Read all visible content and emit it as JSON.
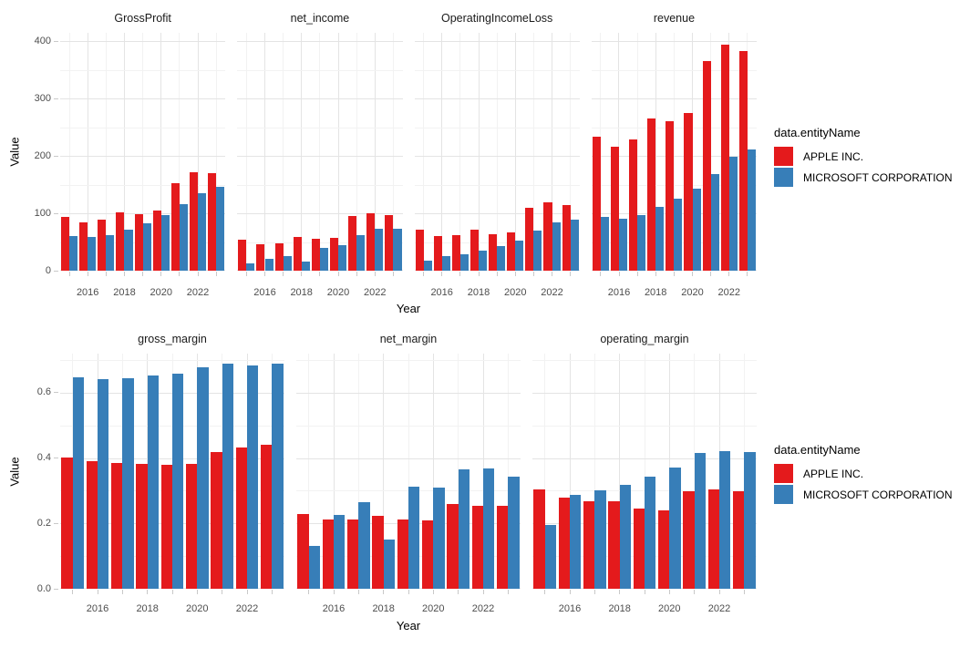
{
  "figure": {
    "axis_title_x": "Year",
    "axis_title_y": "Value",
    "background": "#ffffff"
  },
  "legend": {
    "title": "data.entityName",
    "entries": [
      {
        "label": "APPLE INC.",
        "color": "#e41a1c"
      },
      {
        "label": "MICROSOFT CORPORATION",
        "color": "#377eb8"
      }
    ]
  },
  "chart_data": [
    {
      "type": "bar",
      "row": "top",
      "xlabel": "Year",
      "ylabel": "Value",
      "x": [
        2015,
        2016,
        2017,
        2018,
        2019,
        2020,
        2021,
        2022,
        2023
      ],
      "xticks": [
        2016,
        2018,
        2020,
        2022
      ],
      "yticks": [
        0,
        100,
        200,
        300,
        400
      ],
      "ytick_labels": [
        "0",
        "100",
        "200",
        "300",
        "400"
      ],
      "ylim": [
        0,
        400
      ],
      "grid": true,
      "legend_position": "right",
      "facets": [
        {
          "title": "GrossProfit",
          "series": [
            {
              "name": "APPLE INC.",
              "color": "#e41a1c",
              "values": [
                93.6,
                84.3,
                88.2,
                101.8,
                98.4,
                104.9,
                152.8,
                170.8,
                169.1
              ]
            },
            {
              "name": "MICROSOFT CORPORATION",
              "color": "#377eb8",
              "values": [
                60.5,
                58.4,
                62.3,
                72.0,
                82.9,
                96.9,
                115.9,
                135.6,
                146.1
              ]
            }
          ]
        },
        {
          "title": "net_income",
          "series": [
            {
              "name": "APPLE INC.",
              "color": "#e41a1c",
              "values": [
                53.4,
                45.7,
                48.4,
                59.5,
                55.3,
                57.4,
                94.7,
                99.8,
                97.0
              ]
            },
            {
              "name": "MICROSOFT CORPORATION",
              "color": "#377eb8",
              "values": [
                12.2,
                20.5,
                25.5,
                16.6,
                39.2,
                44.3,
                61.3,
                72.7,
                72.4
              ]
            }
          ]
        },
        {
          "title": "OperatingIncomeLoss",
          "series": [
            {
              "name": "APPLE INC.",
              "color": "#e41a1c",
              "values": [
                71.2,
                60.0,
                61.3,
                70.9,
                63.9,
                66.3,
                108.9,
                119.4,
                114.3
              ]
            },
            {
              "name": "MICROSOFT CORPORATION",
              "color": "#377eb8",
              "values": [
                18.2,
                26.1,
                29.0,
                35.1,
                43.0,
                53.0,
                69.9,
                83.4,
                88.5
              ]
            }
          ]
        },
        {
          "title": "revenue",
          "series": [
            {
              "name": "APPLE INC.",
              "color": "#e41a1c",
              "values": [
                233.7,
                215.6,
                229.2,
                265.6,
                260.2,
                274.5,
                365.8,
                394.3,
                383.3
              ]
            },
            {
              "name": "MICROSOFT CORPORATION",
              "color": "#377eb8",
              "values": [
                93.6,
                91.2,
                96.6,
                110.4,
                125.8,
                143.0,
                168.1,
                198.3,
                211.9
              ]
            }
          ]
        }
      ]
    },
    {
      "type": "bar",
      "row": "bottom",
      "xlabel": "Year",
      "ylabel": "Value",
      "x": [
        2015,
        2016,
        2017,
        2018,
        2019,
        2020,
        2021,
        2022,
        2023
      ],
      "xticks": [
        2016,
        2018,
        2020,
        2022
      ],
      "yticks": [
        0,
        0.2,
        0.4,
        0.6
      ],
      "ytick_labels": [
        "0.0",
        "0.2",
        "0.4",
        "0.6"
      ],
      "ylim": [
        0,
        0.7
      ],
      "grid": true,
      "legend_position": "right",
      "facets": [
        {
          "title": "gross_margin",
          "series": [
            {
              "name": "APPLE INC.",
              "color": "#e41a1c",
              "values": [
                0.401,
                0.391,
                0.385,
                0.383,
                0.378,
                0.382,
                0.418,
                0.433,
                0.441
              ]
            },
            {
              "name": "MICROSOFT CORPORATION",
              "color": "#377eb8",
              "values": [
                0.646,
                0.64,
                0.645,
                0.652,
                0.659,
                0.678,
                0.689,
                0.684,
                0.689
              ]
            }
          ]
        },
        {
          "title": "net_margin",
          "series": [
            {
              "name": "APPLE INC.",
              "color": "#e41a1c",
              "values": [
                0.228,
                0.212,
                0.211,
                0.224,
                0.212,
                0.209,
                0.259,
                0.253,
                0.253
              ]
            },
            {
              "name": "MICROSOFT CORPORATION",
              "color": "#377eb8",
              "values": [
                0.13,
                0.225,
                0.264,
                0.15,
                0.311,
                0.31,
                0.365,
                0.367,
                0.342
              ]
            }
          ]
        },
        {
          "title": "operating_margin",
          "series": [
            {
              "name": "APPLE INC.",
              "color": "#e41a1c",
              "values": [
                0.305,
                0.278,
                0.268,
                0.267,
                0.246,
                0.241,
                0.298,
                0.303,
                0.298
              ]
            },
            {
              "name": "MICROSOFT CORPORATION",
              "color": "#377eb8",
              "values": [
                0.194,
                0.286,
                0.3,
                0.318,
                0.342,
                0.371,
                0.416,
                0.421,
                0.418
              ]
            }
          ]
        }
      ]
    }
  ]
}
